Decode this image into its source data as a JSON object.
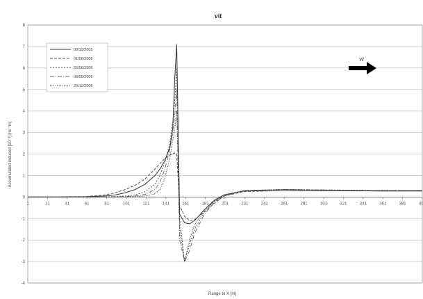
{
  "chart_data": {
    "type": "line",
    "title": "vit",
    "xlabel": "Range to X [m]",
    "ylabel": "Accumulated induced [10⁻³] [m/ °m]",
    "xlim": [
      1,
      401
    ],
    "ylim": [
      -4,
      8
    ],
    "yticks": [
      -4,
      -3,
      -2,
      -1,
      0,
      1,
      2,
      3,
      4,
      5,
      6,
      7,
      8
    ],
    "xticks": [
      1,
      21,
      41,
      61,
      81,
      101,
      121,
      141,
      161,
      181,
      201,
      221,
      241,
      261,
      281,
      301,
      321,
      341,
      361,
      381,
      401
    ],
    "grid": true,
    "legend_position": "top-left",
    "annotation": {
      "text": "W",
      "kind": "arrow-right"
    },
    "colors": {
      "grid": "#c8c8c8",
      "line": "#555555",
      "arrow": "#000000"
    },
    "series": [
      {
        "name": "00/12/2005",
        "x": [
          1,
          60,
          80,
          90,
          100,
          110,
          120,
          130,
          135,
          140,
          145,
          148,
          150,
          152,
          155,
          160,
          165,
          170,
          180,
          190,
          200,
          220,
          260,
          300,
          360,
          401
        ],
        "y": [
          0,
          0.01,
          0.05,
          0.1,
          0.2,
          0.35,
          0.6,
          1.0,
          1.3,
          1.7,
          2.3,
          3.2,
          5.5,
          7.1,
          -0.8,
          -1.2,
          -1.25,
          -1.1,
          -0.6,
          -0.15,
          0.1,
          0.28,
          0.3,
          0.3,
          0.28,
          0.28
        ]
      },
      {
        "name": "01/06/2006",
        "x": [
          1,
          60,
          80,
          90,
          100,
          110,
          120,
          130,
          135,
          140,
          145,
          148,
          150,
          152,
          155,
          160,
          165,
          170,
          180,
          190,
          200,
          220,
          260,
          300,
          360,
          401
        ],
        "y": [
          0,
          0.02,
          0.1,
          0.2,
          0.35,
          0.55,
          0.85,
          1.3,
          1.55,
          1.8,
          1.95,
          2.0,
          2.05,
          2.0,
          -0.4,
          -0.9,
          -1.1,
          -1.05,
          -0.7,
          -0.3,
          0.05,
          0.25,
          0.3,
          0.3,
          0.3,
          0.3
        ]
      },
      {
        "name": "26/06/2006",
        "x": [
          1,
          60,
          80,
          90,
          100,
          110,
          120,
          130,
          135,
          140,
          145,
          148,
          150,
          152,
          155,
          160,
          165,
          170,
          180,
          190,
          200,
          220,
          260,
          300,
          360,
          401
        ],
        "y": [
          0,
          0,
          0.01,
          0.02,
          0.05,
          0.1,
          0.25,
          0.6,
          1.0,
          1.6,
          2.5,
          3.5,
          4.5,
          6.0,
          -1.0,
          -3.0,
          -2.2,
          -1.5,
          -0.7,
          -0.2,
          0.1,
          0.3,
          0.35,
          0.33,
          0.3,
          0.3
        ]
      },
      {
        "name": "08/09/2006",
        "x": [
          1,
          60,
          80,
          90,
          100,
          110,
          120,
          130,
          135,
          140,
          145,
          148,
          150,
          152,
          155,
          160,
          165,
          170,
          180,
          190,
          200,
          220,
          260,
          300,
          360,
          401
        ],
        "y": [
          0,
          0,
          0,
          0.01,
          0.02,
          0.05,
          0.12,
          0.35,
          0.7,
          1.3,
          2.2,
          3.0,
          3.8,
          5.0,
          -2.0,
          -3.0,
          -2.5,
          -1.7,
          -0.8,
          -0.25,
          0.05,
          0.3,
          0.35,
          0.33,
          0.3,
          0.3
        ]
      },
      {
        "name": "29/12/2006",
        "x": [
          1,
          60,
          80,
          90,
          100,
          110,
          120,
          130,
          135,
          140,
          145,
          148,
          150,
          152,
          155,
          160,
          165,
          170,
          180,
          190,
          200,
          220,
          260,
          300,
          360,
          401
        ],
        "y": [
          0,
          0,
          0,
          0,
          0.01,
          0.02,
          0.05,
          0.15,
          0.35,
          0.9,
          1.8,
          2.6,
          3.2,
          4.0,
          -1.5,
          -3.0,
          -2.0,
          -1.3,
          -0.6,
          -0.2,
          0.05,
          0.3,
          0.35,
          0.32,
          0.3,
          0.3
        ]
      }
    ]
  }
}
